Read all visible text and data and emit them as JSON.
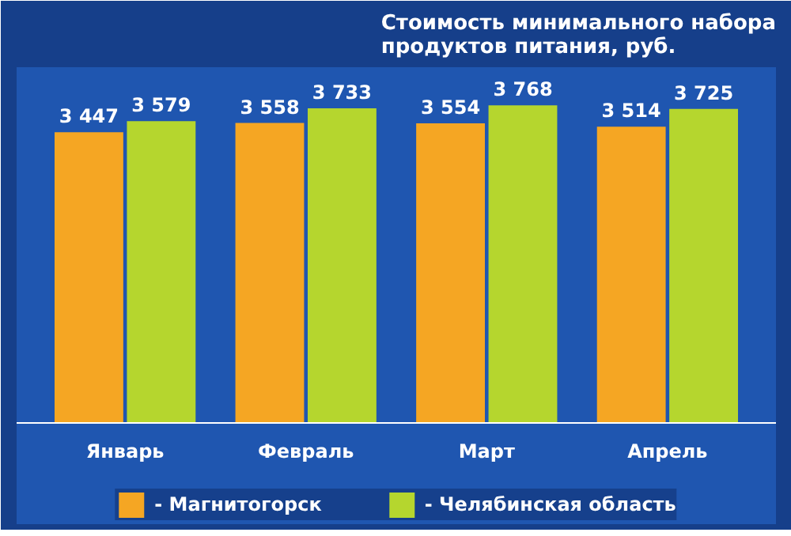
{
  "chart_data": {
    "type": "bar",
    "title": "Стоимость минимального набора\nпродуктов питания, руб.",
    "categories": [
      "Январь",
      "Февраль",
      "Март",
      "Апрель"
    ],
    "series": [
      {
        "name": "- Магнитогорск",
        "color": "#f5a623",
        "values": [
          3447,
          3558,
          3554,
          3514
        ],
        "value_labels": [
          "3 447",
          "3 558",
          "3 554",
          "3 514"
        ]
      },
      {
        "name": "- Челябинская область",
        "color": "#b5d62e",
        "values": [
          3579,
          3733,
          3768,
          3725
        ],
        "value_labels": [
          "3 579",
          "3 733",
          "3 768",
          "3 725"
        ]
      }
    ],
    "legend": "bottom"
  }
}
